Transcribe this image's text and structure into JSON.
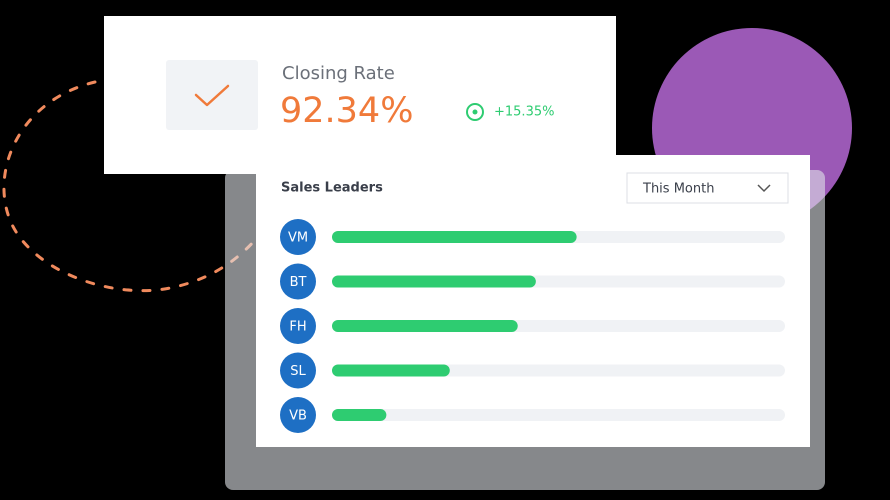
{
  "closing_rate": {
    "label": "Closing Rate",
    "value": "92.34%",
    "change": "+15.35%"
  },
  "chart_data": {
    "type": "bar",
    "title": "Sales Leaders",
    "filter": "This Month",
    "categories": [
      "VM",
      "BT",
      "FH",
      "SL",
      "VB"
    ],
    "values": [
      54,
      45,
      41,
      26,
      12
    ],
    "xlim": [
      0,
      100
    ],
    "color": "#2ecc71"
  }
}
